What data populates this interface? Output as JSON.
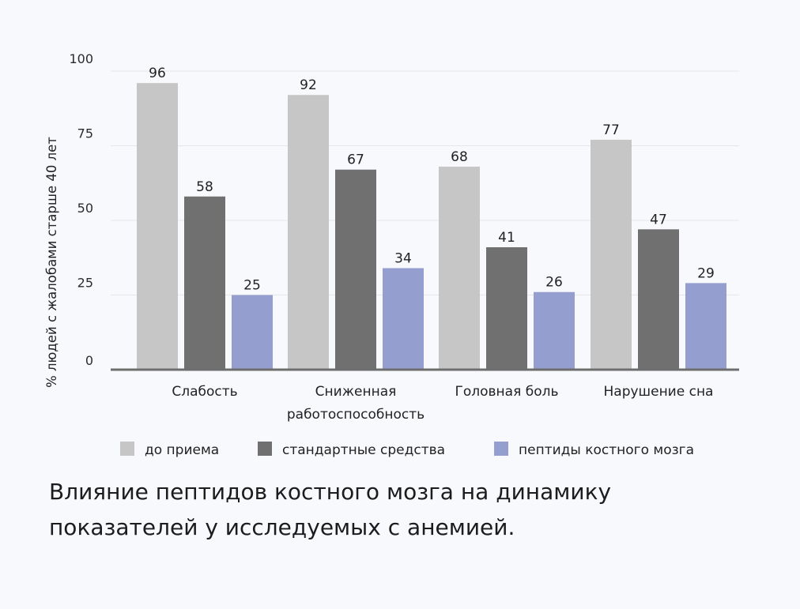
{
  "chart_data": {
    "type": "bar",
    "title": "Влияние пептидов костного мозга на динамику показателей у исследуемых с анемией.",
    "title_lines": [
      "Влияние пептидов костного мозга на динамику",
      "показателей у исследуемых с анемией."
    ],
    "ylabel": "% людей с  жалобами старше 40 лет",
    "xlabel": "",
    "ylim": [
      0,
      100
    ],
    "yticks": [
      0,
      25,
      50,
      75,
      100
    ],
    "grid": true,
    "legend_position": "bottom",
    "categories": [
      "Слабость",
      "Сниженная работоспособность",
      "Головная боль",
      "Нарушение сна"
    ],
    "category_lines": [
      [
        "Слабость"
      ],
      [
        "Сниженная",
        "работоспособность"
      ],
      [
        "Головная боль"
      ],
      [
        "Нарушение сна"
      ]
    ],
    "series": [
      {
        "name": "до приема",
        "color": "#c6c6c6",
        "values": [
          96,
          92,
          68,
          77
        ]
      },
      {
        "name": "стандартные средства",
        "color": "#707070",
        "values": [
          58,
          67,
          41,
          47
        ]
      },
      {
        "name": "пептиды костного мозга",
        "color": "#949fcf",
        "values": [
          25,
          34,
          26,
          29
        ]
      }
    ],
    "colors": {
      "axis": "#6e6e6e",
      "grid": "#e4e6ec",
      "background": "#f8f9fd"
    }
  }
}
